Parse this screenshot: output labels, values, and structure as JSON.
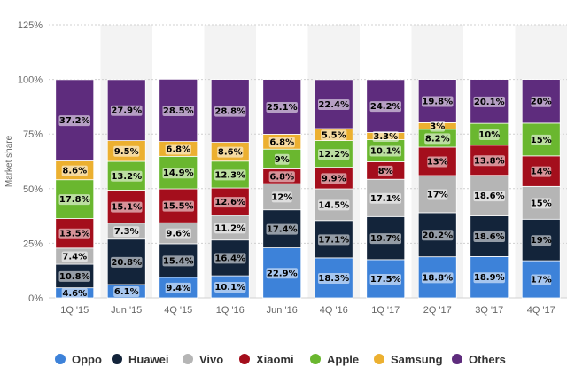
{
  "chart_data": {
    "type": "bar",
    "stacked": true,
    "ylabel": "Market share",
    "ylim": [
      0,
      125
    ],
    "y_ticks": [
      "0%",
      "25%",
      "50%",
      "75%",
      "100%",
      "125%"
    ],
    "categories": [
      "1Q '15",
      "Jun '15",
      "4Q '15",
      "1Q '16",
      "Jun '16",
      "4Q '16",
      "1Q '17",
      "2Q '17",
      "3Q '17",
      "4Q '17"
    ],
    "legend_position": "bottom",
    "grid": true,
    "series": [
      {
        "name": "Oppo",
        "color": "#3d82d9",
        "values": [
          4.6,
          6.1,
          9.4,
          10.1,
          22.9,
          18.3,
          17.5,
          18.8,
          18.9,
          17
        ],
        "labels": [
          "4.6%",
          "6.1%",
          "9.4%",
          "10.1%",
          "22.9%",
          "18.3%",
          "17.5%",
          "18.8%",
          "18.9%",
          "17%"
        ]
      },
      {
        "name": "Huawei",
        "color": "#13243a",
        "values": [
          10.8,
          20.8,
          15.4,
          16.4,
          17.4,
          17.1,
          19.7,
          20.2,
          18.6,
          19
        ],
        "labels": [
          "10.8%",
          "20.8%",
          "15.4%",
          "16.4%",
          "17.4%",
          "17.1%",
          "19.7%",
          "20.2%",
          "18.6%",
          "19%"
        ]
      },
      {
        "name": "Vivo",
        "color": "#b5b5b5",
        "values": [
          7.4,
          7.3,
          9.6,
          11.2,
          12,
          14.5,
          17.1,
          17,
          18.6,
          15
        ],
        "labels": [
          "7.4%",
          "7.3%",
          "9.6%",
          "11.2%",
          "12%",
          "14.5%",
          "17.1%",
          "17%",
          "18.6%",
          "15%"
        ]
      },
      {
        "name": "Xiaomi",
        "color": "#a40e1c",
        "values": [
          13.5,
          15.1,
          15.5,
          12.6,
          6.8,
          9.9,
          8,
          13,
          13.8,
          14
        ],
        "labels": [
          "13.5%",
          "15.1%",
          "15.5%",
          "12.6%",
          "6.8%",
          "9.9%",
          "8%",
          "13%",
          "13.8%",
          "14%"
        ]
      },
      {
        "name": "Apple",
        "color": "#6ab72f",
        "values": [
          17.8,
          13.2,
          14.9,
          12.3,
          9,
          12.2,
          10.1,
          8.2,
          10,
          15
        ],
        "labels": [
          "17.8%",
          "13.2%",
          "14.9%",
          "12.3%",
          "9%",
          "12.2%",
          "10.1%",
          "8.2%",
          "10%",
          "15%"
        ]
      },
      {
        "name": "Samsung",
        "color": "#ecb030",
        "values": [
          8.6,
          9.5,
          6.8,
          8.6,
          6.8,
          5.5,
          3.3,
          3,
          0,
          0
        ],
        "labels": [
          "8.6%",
          "9.5%",
          "6.8%",
          "8.6%",
          "6.8%",
          "5.5%",
          "3.3%",
          "3%",
          "",
          ""
        ]
      },
      {
        "name": "Others",
        "color": "#5e2c7d",
        "values": [
          37.2,
          27.9,
          28.5,
          28.8,
          25.1,
          22.4,
          24.2,
          19.8,
          20.1,
          20
        ],
        "labels": [
          "37.2%",
          "27.9%",
          "28.5%",
          "28.8%",
          "25.1%",
          "22.4%",
          "24.2%",
          "19.8%",
          "20.1%",
          "20%"
        ]
      }
    ]
  }
}
